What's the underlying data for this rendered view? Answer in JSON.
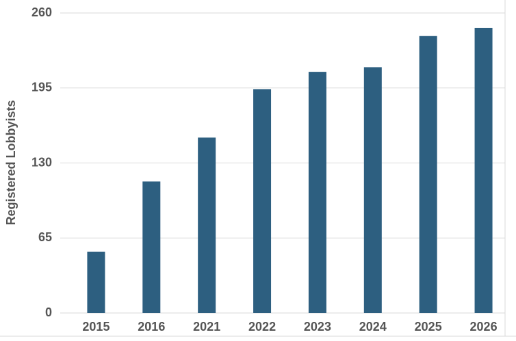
{
  "chart_data": {
    "type": "bar",
    "y_label": "Registered Lobbyists",
    "categories": [
      "2015",
      "2016",
      "2021",
      "2022",
      "2023",
      "2024",
      "2025",
      "2026"
    ],
    "values": [
      53,
      114,
      152,
      194,
      209,
      213,
      240,
      247
    ],
    "color": "#2d5f80",
    "ylim": [
      0,
      260
    ],
    "yticks": [
      0,
      65,
      130,
      195,
      260
    ],
    "grid": true
  }
}
